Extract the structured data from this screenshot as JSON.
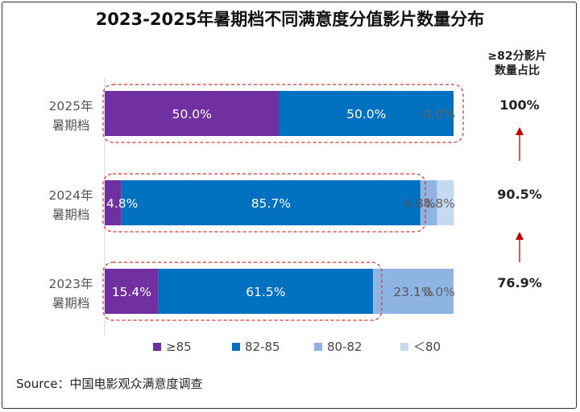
{
  "chart_data": {
    "type": "bar",
    "orientation": "horizontal",
    "stacked": true,
    "title": "2023-2025年暑期档不同满意度分值影片数量分布",
    "categories": [
      [
        "2025年",
        "暑期档"
      ],
      [
        "2024年",
        "暑期档"
      ],
      [
        "2023年",
        "暑期档"
      ]
    ],
    "series": [
      {
        "name": "≥85",
        "color": "#7030A0",
        "label_color": "#ffffff",
        "values": [
          50.0,
          4.8,
          15.4
        ]
      },
      {
        "name": "82-85",
        "color": "#0070C0",
        "label_color": "#ffffff",
        "values": [
          50.0,
          85.7,
          61.5
        ]
      },
      {
        "name": "80-82",
        "color": "#8EB4E3",
        "label_color": "#555555",
        "values": [
          0.0,
          4.8,
          23.1
        ]
      },
      {
        "name": "＜80",
        "color": "#C5D9F1",
        "label_color": "#555555",
        "values": [
          0.0,
          4.8,
          0.0
        ]
      }
    ],
    "data_labels": [
      [
        "50.0%",
        "50.0%",
        "",
        "0.0%"
      ],
      [
        "4.8%",
        "85.7%",
        "4.8%",
        "4.8%"
      ],
      [
        "15.4%",
        "61.5%",
        "23.1%",
        "0.0%"
      ]
    ],
    "xlim": [
      0,
      100
    ],
    "highlight_color": "#E0302A",
    "ratio_header": [
      "≥82分影片",
      "数量占比"
    ],
    "ratios": [
      "100%",
      "90.5%",
      "76.9%"
    ],
    "legend_position": "bottom"
  },
  "source": "Source：中国电影观众满意度调查"
}
